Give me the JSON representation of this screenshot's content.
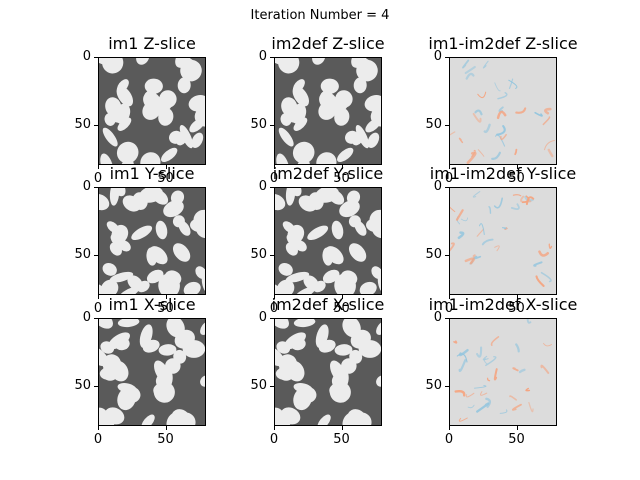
{
  "figure": {
    "suptitle": "Iteration Number = 4"
  },
  "panels": [
    {
      "id": "im1-z",
      "title": "im1 Z-slice",
      "kind": "gray",
      "seed": 11
    },
    {
      "id": "im2def-z",
      "title": "im2def Z-slice",
      "kind": "gray",
      "seed": 11
    },
    {
      "id": "diff-z",
      "title": "im1-im2def Z-slice",
      "kind": "diff",
      "seed": 31
    },
    {
      "id": "im1-y",
      "title": "im1 Y-slice",
      "kind": "gray",
      "seed": 47
    },
    {
      "id": "im2def-y",
      "title": "im2def Y-slice",
      "kind": "gray",
      "seed": 47
    },
    {
      "id": "diff-y",
      "title": "im1-im2def Y-slice",
      "kind": "diff",
      "seed": 53
    },
    {
      "id": "im1-x",
      "title": "im1 X-slice",
      "kind": "gray",
      "seed": 71
    },
    {
      "id": "im2def-x",
      "title": "im2def X-slice",
      "kind": "gray",
      "seed": 71
    },
    {
      "id": "diff-x",
      "title": "im1-im2def X-slice",
      "kind": "diff",
      "seed": 89
    }
  ],
  "axes": {
    "ytick_labels": [
      "0",
      "50"
    ],
    "xtick_labels": [
      "0",
      "50"
    ]
  },
  "colors": {
    "grain": "#ececec",
    "matrix": "#5a5a5a",
    "diff_background": "#dcdcdc",
    "diff_positive": "#f4a582",
    "diff_negative": "#92c5de"
  }
}
